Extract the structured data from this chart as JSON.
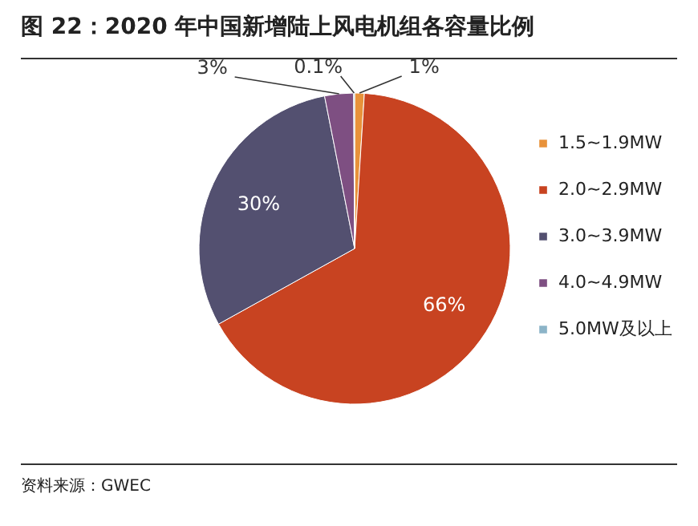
{
  "chart_data": {
    "type": "pie",
    "title": "图 22：2020 年中国新增陆上风电机组各容量比例",
    "categories": [
      "1.5~1.9MW",
      "2.0~2.9MW",
      "3.0~3.9MW",
      "4.0~4.9MW",
      "5.0MW及以上"
    ],
    "values": [
      1,
      66,
      30,
      3,
      0.1
    ],
    "colors": [
      "#e8923a",
      "#c84321",
      "#535070",
      "#7e4f82",
      "#8cb4c8"
    ],
    "value_labels": [
      "1%",
      "66%",
      "30%",
      "3%",
      "0.1%"
    ],
    "legend": "right",
    "annotations": [
      "资料来源：GWEC"
    ]
  }
}
